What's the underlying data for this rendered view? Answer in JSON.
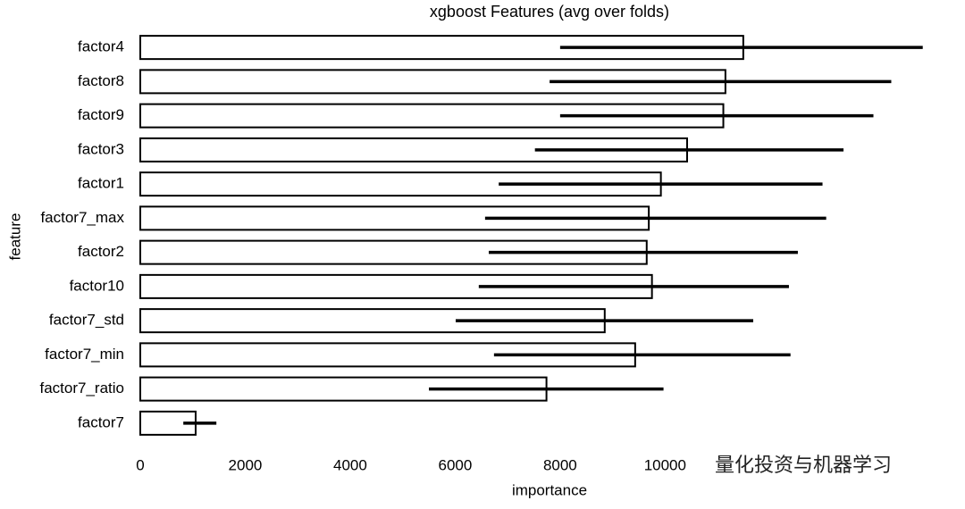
{
  "chart_data": {
    "type": "bar",
    "orientation": "horizontal",
    "title": "xgboost Features (avg over folds)",
    "xlabel": "importance",
    "ylabel": "feature",
    "categories": [
      "factor4",
      "factor8",
      "factor9",
      "factor3",
      "factor1",
      "factor7_max",
      "factor2",
      "factor10",
      "factor7_std",
      "factor7_min",
      "factor7_ratio",
      "factor7"
    ],
    "values": [
      11490,
      11150,
      11110,
      10420,
      9920,
      9690,
      9650,
      9750,
      8850,
      9430,
      7740,
      1055
    ],
    "ci_low": [
      8000,
      7800,
      8000,
      7520,
      6830,
      6570,
      6640,
      6450,
      6010,
      6740,
      5500,
      820
    ],
    "ci_high": [
      14910,
      14310,
      13970,
      13400,
      13000,
      13070,
      12530,
      12360,
      11680,
      12390,
      9970,
      1450
    ],
    "color": "#ffffff",
    "edge_color": "#000000",
    "errorbar_color": "#000000",
    "xlim": [
      0,
      15000
    ],
    "xticks": [
      0,
      2000,
      4000,
      6000,
      8000,
      10000
    ],
    "grid": false
  },
  "watermark": "量化投资与机器学习"
}
